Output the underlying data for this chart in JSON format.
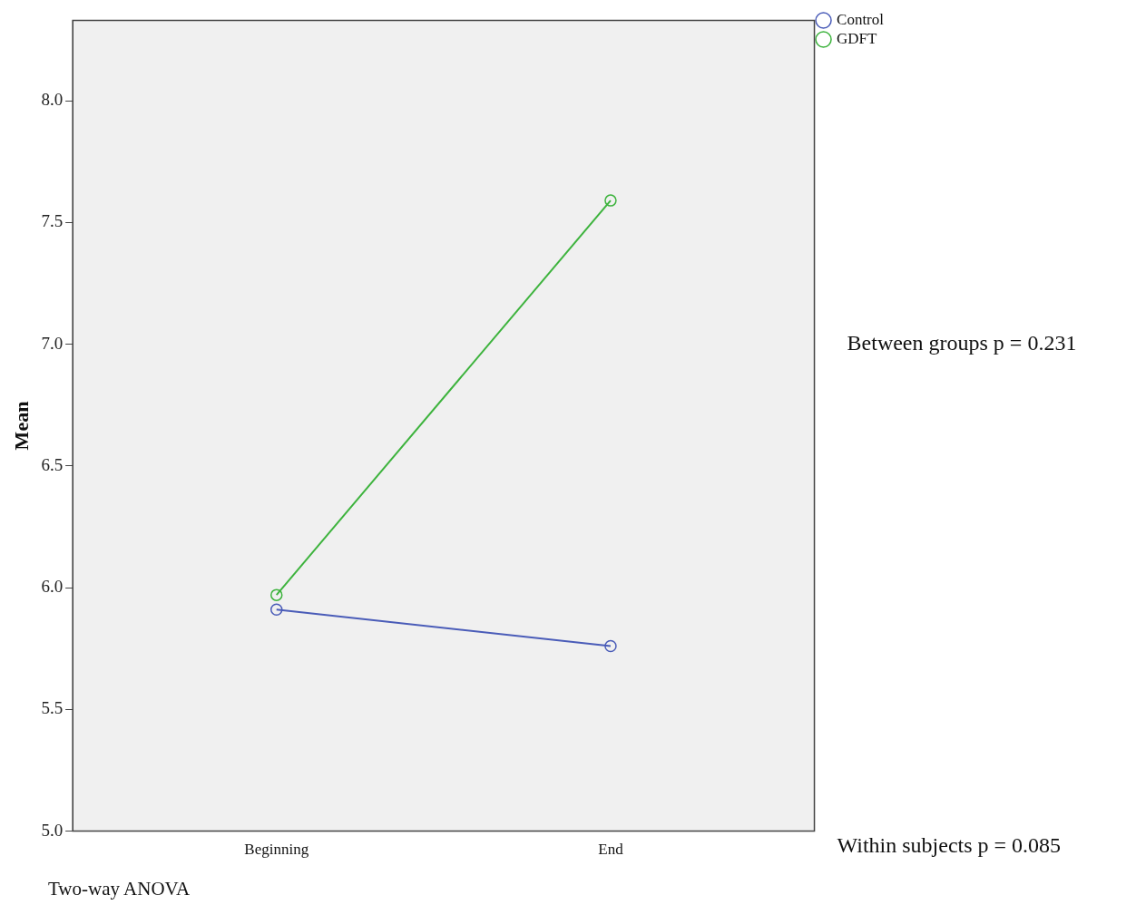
{
  "chart_data": {
    "type": "line",
    "ylabel": "Mean",
    "categories": [
      "Beginning",
      "End"
    ],
    "series": [
      {
        "name": "Control",
        "color": "#4a5cb8",
        "values": [
          5.91,
          5.76
        ]
      },
      {
        "name": "GDFT",
        "color": "#3db33d",
        "values": [
          5.97,
          7.59
        ]
      }
    ],
    "ylim": [
      5,
      8.33
    ],
    "yticks": [
      {
        "value": 5,
        "label": "5.0"
      },
      {
        "value": 5.5,
        "label": "5.5"
      },
      {
        "value": 6,
        "label": "6.0"
      },
      {
        "value": 6.5,
        "label": "6.5"
      },
      {
        "value": 7,
        "label": "7.0"
      },
      {
        "value": 7.5,
        "label": "7.5"
      },
      {
        "value": 8,
        "label": "8.0"
      }
    ],
    "grid": false,
    "legend": "top right",
    "marker": "circle",
    "line_style": "solid",
    "annotations": [
      "Between groups p = 0.231",
      "Within subjects p = 0.085",
      "Two-way ANOVA"
    ]
  }
}
